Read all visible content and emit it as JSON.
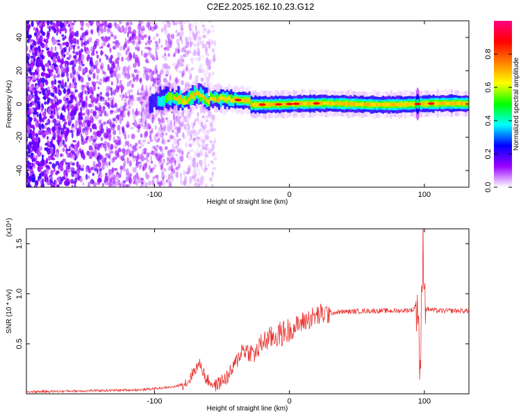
{
  "title": "C2E2.2025.162.10.23.G12",
  "chart_data": [
    {
      "type": "heatmap",
      "xlabel": "Height of straight line (km)",
      "ylabel": "Frequency (Hz)",
      "xlim": [
        -195,
        133
      ],
      "ylim": [
        -50,
        50
      ],
      "x_ticks": [
        -100,
        0,
        100
      ],
      "x_tick_labels": [
        "-100",
        "0",
        "100"
      ],
      "y_ticks": [
        -40,
        -20,
        0,
        20,
        40
      ],
      "y_tick_labels": [
        "-40",
        "-20",
        "0",
        "20",
        "40"
      ],
      "colorbar": {
        "label": "Normalized spectral amplitude",
        "range": [
          0,
          1
        ],
        "ticks": [
          0.0,
          0.2,
          0.4,
          0.6,
          0.8
        ],
        "tick_labels": [
          "0.0",
          "0.2",
          "0.4",
          "0.6",
          "0.8"
        ],
        "colors": [
          "#ffffff",
          "#9a00ff",
          "#0000ff",
          "#00ffff",
          "#00ff00",
          "#ffff00",
          "#ff8000",
          "#ff0000",
          "#ff0080"
        ]
      },
      "features": {
        "noise_region_km": [
          -195,
          -55
        ],
        "band_start_km": -110,
        "band_center_hz": 0,
        "hotspots_km": [
          -38,
          -20,
          -8,
          0,
          5,
          20,
          95,
          105
        ],
        "spike_km": 95
      }
    },
    {
      "type": "line",
      "xlabel": "Height of straight line (km)",
      "ylabel": "SNR (10 * v/v)",
      "multiplier": "(x10⁴)",
      "xlim": [
        -195,
        133
      ],
      "ylim": [
        0,
        1.65
      ],
      "x_ticks": [
        -100,
        0,
        100
      ],
      "x_tick_labels": [
        "-100",
        "0",
        "100"
      ],
      "y_ticks": [
        0.5,
        1.0,
        1.5
      ],
      "y_tick_labels": [
        "0.5",
        "1.0",
        "1.5"
      ],
      "color": "#e8302c",
      "profile": [
        [
          -195,
          0.02
        ],
        [
          -150,
          0.03
        ],
        [
          -110,
          0.04
        ],
        [
          -85,
          0.07
        ],
        [
          -75,
          0.12
        ],
        [
          -70,
          0.25
        ],
        [
          -66,
          0.3
        ],
        [
          -62,
          0.15
        ],
        [
          -55,
          0.08
        ],
        [
          -45,
          0.18
        ],
        [
          -40,
          0.3
        ],
        [
          -35,
          0.45
        ],
        [
          -30,
          0.42
        ],
        [
          -25,
          0.4
        ],
        [
          -20,
          0.52
        ],
        [
          -10,
          0.58
        ],
        [
          0,
          0.63
        ],
        [
          10,
          0.72
        ],
        [
          20,
          0.78
        ],
        [
          30,
          0.81
        ],
        [
          40,
          0.82
        ],
        [
          60,
          0.83
        ],
        [
          80,
          0.83
        ],
        [
          92,
          0.84
        ],
        [
          95,
          0.95
        ],
        [
          97,
          0.2
        ],
        [
          99,
          1.5
        ],
        [
          101,
          0.85
        ],
        [
          110,
          0.83
        ],
        [
          133,
          0.83
        ]
      ]
    }
  ]
}
